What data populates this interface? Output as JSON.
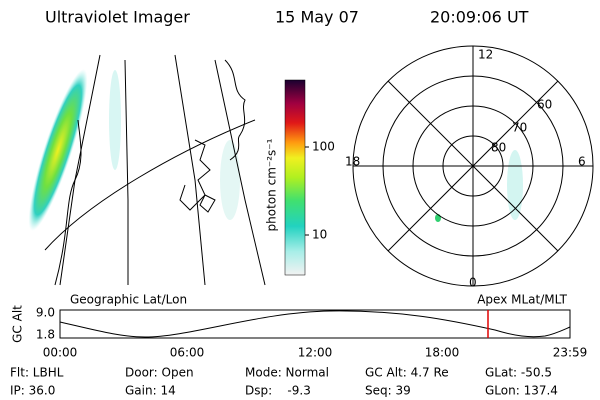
{
  "header": {
    "title": "Ultraviolet Imager",
    "date": "15 May 07",
    "time": "20:09:06 UT"
  },
  "colorbar": {
    "label": "photon cm⁻²s⁻¹",
    "ticks": [
      "100",
      "10"
    ]
  },
  "polar": {
    "hours": [
      "12",
      "6",
      "0",
      "18"
    ],
    "latitudes": [
      "60",
      "70",
      "80"
    ]
  },
  "strip": {
    "left_label": "Geographic Lat/Lon",
    "right_label": "Apex MLat/MLT",
    "y_label": "GC Alt",
    "y_ticks": [
      "9.0",
      "1.8"
    ],
    "x_ticks": [
      "00:00",
      "06:00",
      "12:00",
      "18:00",
      "23:59"
    ]
  },
  "info": [
    [
      "Flt: LBHL",
      "Door: Open",
      "Mode: Normal",
      "GC Alt: 4.7 Re",
      "GLat: -50.5"
    ],
    [
      "IP: 36.0",
      "Gain: 14",
      "Dsp:    -9.3",
      "Seq: 39",
      "GLon: 137.4"
    ]
  ]
}
